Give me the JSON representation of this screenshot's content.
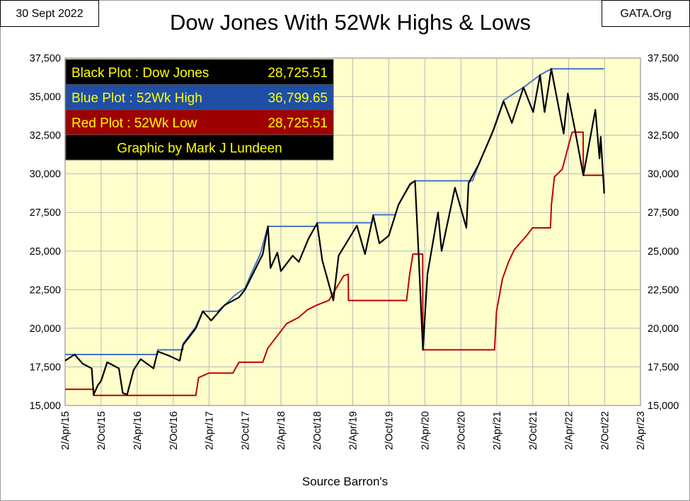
{
  "date_label": "30 Sept 2022",
  "site_label": "GATA.Org",
  "footer": "Source Barron's",
  "legend": [
    {
      "label": "Black Plot : Dow Jones",
      "value": "28,725.51",
      "bg": "#000000",
      "fg": "#ffff00"
    },
    {
      "label": "Blue Plot  : 52Wk High",
      "value": "36,799.65",
      "bg": "#1f4ea6",
      "fg": "#ffff00"
    },
    {
      "label": "Red Plot  : 52Wk Low",
      "value": "28,725.51",
      "bg": "#9e0000",
      "fg": "#ffff00"
    },
    {
      "label": "Graphic by Mark J Lundeen",
      "value": "",
      "bg": "#000000",
      "fg": "#ffff00"
    }
  ],
  "colors": {
    "plot_bg": "#ffffcc",
    "grid": "#b8b8b8",
    "dow": "#000000",
    "high": "#4472c4",
    "low": "#c00000"
  },
  "chart_data": {
    "type": "line",
    "title": "Dow Jones With 52Wk Highs & Lows",
    "xlim": [
      "2015-04-02",
      "2023-04-02"
    ],
    "ylim": [
      15000,
      37500
    ],
    "grid": true,
    "y_ticks": [
      "15,000",
      "17,500",
      "20,000",
      "22,500",
      "25,000",
      "27,500",
      "30,000",
      "32,500",
      "35,000",
      "37,500"
    ],
    "x_ticks": [
      "2/Apr/15",
      "2/Oct/15",
      "2/Apr/16",
      "2/Oct/16",
      "2/Apr/17",
      "2/Oct/17",
      "2/Apr/18",
      "2/Oct/18",
      "2/Apr/19",
      "2/Oct/19",
      "2/Apr/20",
      "2/Oct/20",
      "2/Apr/21",
      "2/Oct/21",
      "2/Apr/22",
      "2/Oct/22",
      "2/Apr/23"
    ],
    "series": [
      {
        "name": "Dow Jones",
        "color": "#000000",
        "points": [
          [
            "2015-04-02",
            17900
          ],
          [
            "2015-05-20",
            18300
          ],
          [
            "2015-07-01",
            17700
          ],
          [
            "2015-08-15",
            17400
          ],
          [
            "2015-08-25",
            15700
          ],
          [
            "2015-09-15",
            16300
          ],
          [
            "2015-10-02",
            16600
          ],
          [
            "2015-11-02",
            17800
          ],
          [
            "2015-12-31",
            17400
          ],
          [
            "2016-01-20",
            15800
          ],
          [
            "2016-02-11",
            15700
          ],
          [
            "2016-03-15",
            17300
          ],
          [
            "2016-04-20",
            18000
          ],
          [
            "2016-06-24",
            17400
          ],
          [
            "2016-07-15",
            18500
          ],
          [
            "2016-09-15",
            18200
          ],
          [
            "2016-11-04",
            17900
          ],
          [
            "2016-11-20",
            18900
          ],
          [
            "2017-01-25",
            20000
          ],
          [
            "2017-03-01",
            21100
          ],
          [
            "2017-04-13",
            20500
          ],
          [
            "2017-06-20",
            21500
          ],
          [
            "2017-09-01",
            22000
          ],
          [
            "2017-10-02",
            22500
          ],
          [
            "2017-12-31",
            24800
          ],
          [
            "2018-01-26",
            26600
          ],
          [
            "2018-02-08",
            23900
          ],
          [
            "2018-03-15",
            24900
          ],
          [
            "2018-04-02",
            23700
          ],
          [
            "2018-06-01",
            24700
          ],
          [
            "2018-07-02",
            24300
          ],
          [
            "2018-08-20",
            25800
          ],
          [
            "2018-10-03",
            26800
          ],
          [
            "2018-10-29",
            24400
          ],
          [
            "2018-12-24",
            21800
          ],
          [
            "2019-01-20",
            24700
          ],
          [
            "2019-04-23",
            26650
          ],
          [
            "2019-06-03",
            24800
          ],
          [
            "2019-07-15",
            27300
          ],
          [
            "2019-08-15",
            25500
          ],
          [
            "2019-10-02",
            26000
          ],
          [
            "2019-11-20",
            28000
          ],
          [
            "2020-01-17",
            29300
          ],
          [
            "2020-02-12",
            29550
          ],
          [
            "2020-02-28",
            25400
          ],
          [
            "2020-03-23",
            18600
          ],
          [
            "2020-04-15",
            23500
          ],
          [
            "2020-06-08",
            27500
          ],
          [
            "2020-06-26",
            25000
          ],
          [
            "2020-09-02",
            29100
          ],
          [
            "2020-10-30",
            26500
          ],
          [
            "2020-11-10",
            29400
          ],
          [
            "2020-12-31",
            30600
          ],
          [
            "2021-03-15",
            32800
          ],
          [
            "2021-05-07",
            34700
          ],
          [
            "2021-06-18",
            33300
          ],
          [
            "2021-08-16",
            35600
          ],
          [
            "2021-10-04",
            34000
          ],
          [
            "2021-11-08",
            36400
          ],
          [
            "2021-12-01",
            34000
          ],
          [
            "2022-01-04",
            36800
          ],
          [
            "2022-03-08",
            32600
          ],
          [
            "2022-03-29",
            35200
          ],
          [
            "2022-05-02",
            33000
          ],
          [
            "2022-06-16",
            29900
          ],
          [
            "2022-08-16",
            34150
          ],
          [
            "2022-09-06",
            31000
          ],
          [
            "2022-09-12",
            32400
          ],
          [
            "2022-09-30",
            28725.51
          ]
        ]
      },
      {
        "name": "52Wk High",
        "color": "#4472c4",
        "points": [
          [
            "2015-04-02",
            18300
          ],
          [
            "2016-07-14",
            18300
          ],
          [
            "2016-07-15",
            18600
          ],
          [
            "2016-11-20",
            18600
          ],
          [
            "2016-11-21",
            19000
          ],
          [
            "2017-01-25",
            20100
          ],
          [
            "2017-03-01",
            21100
          ],
          [
            "2017-05-15",
            21100
          ],
          [
            "2017-06-20",
            21500
          ],
          [
            "2017-08-07",
            22100
          ],
          [
            "2017-10-02",
            22600
          ],
          [
            "2017-11-01",
            23500
          ],
          [
            "2017-12-18",
            24800
          ],
          [
            "2018-01-26",
            26600
          ],
          [
            "2018-10-02",
            26600
          ],
          [
            "2018-10-03",
            26830
          ],
          [
            "2019-07-10",
            26830
          ],
          [
            "2019-07-15",
            27350
          ],
          [
            "2019-11-04",
            27350
          ],
          [
            "2019-11-20",
            28000
          ],
          [
            "2020-01-17",
            29350
          ],
          [
            "2020-02-12",
            29550
          ],
          [
            "2020-11-30",
            29550
          ],
          [
            "2020-12-31",
            30600
          ],
          [
            "2021-03-15",
            32800
          ],
          [
            "2021-05-07",
            34770
          ],
          [
            "2021-08-16",
            35600
          ],
          [
            "2021-11-08",
            36400
          ],
          [
            "2022-01-04",
            36800
          ],
          [
            "2022-09-30",
            36799.65
          ]
        ]
      },
      {
        "name": "52Wk Low",
        "color": "#c00000",
        "points": [
          [
            "2015-04-02",
            16050
          ],
          [
            "2015-08-24",
            16050
          ],
          [
            "2015-08-25",
            15650
          ],
          [
            "2017-01-25",
            15650
          ],
          [
            "2017-02-08",
            16800
          ],
          [
            "2017-04-01",
            17100
          ],
          [
            "2017-08-01",
            17100
          ],
          [
            "2017-09-01",
            17800
          ],
          [
            "2017-12-31",
            17800
          ],
          [
            "2018-01-25",
            18700
          ],
          [
            "2018-03-26",
            19700
          ],
          [
            "2018-05-01",
            20300
          ],
          [
            "2018-07-01",
            20700
          ],
          [
            "2018-08-15",
            21200
          ],
          [
            "2018-10-01",
            21500
          ],
          [
            "2018-12-01",
            21800
          ],
          [
            "2019-02-15",
            23400
          ],
          [
            "2019-03-10",
            23500
          ],
          [
            "2019-03-11",
            21800
          ],
          [
            "2019-12-31",
            21800
          ],
          [
            "2020-01-15",
            23400
          ],
          [
            "2020-02-01",
            24800
          ],
          [
            "2020-03-22",
            24800
          ],
          [
            "2020-03-23",
            18600
          ],
          [
            "2021-03-22",
            18600
          ],
          [
            "2021-04-01",
            21100
          ],
          [
            "2021-05-01",
            23200
          ],
          [
            "2021-06-01",
            24300
          ],
          [
            "2021-07-01",
            25100
          ],
          [
            "2021-09-01",
            26000
          ],
          [
            "2021-10-01",
            26500
          ],
          [
            "2021-12-31",
            26500
          ],
          [
            "2022-01-05",
            28000
          ],
          [
            "2022-01-20",
            29800
          ],
          [
            "2022-03-01",
            30300
          ],
          [
            "2022-04-05",
            32000
          ],
          [
            "2022-04-20",
            32700
          ],
          [
            "2022-06-15",
            32700
          ],
          [
            "2022-06-16",
            29900
          ],
          [
            "2022-09-25",
            29900
          ],
          [
            "2022-09-30",
            28725.51
          ]
        ]
      }
    ]
  }
}
